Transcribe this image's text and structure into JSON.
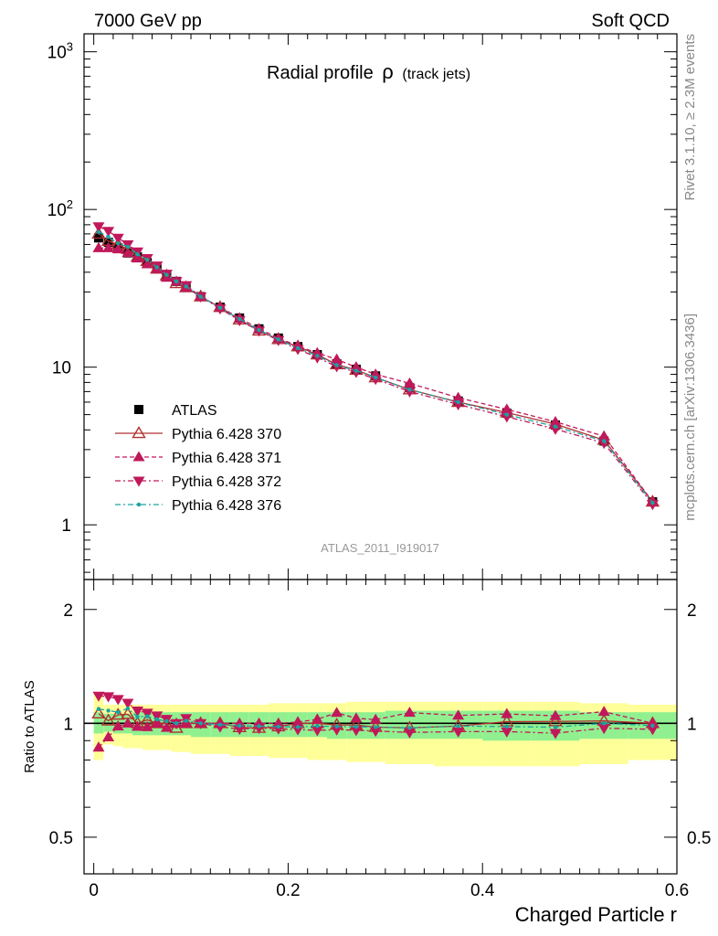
{
  "header": {
    "left": "7000 GeV pp",
    "right": "Soft QCD"
  },
  "side_labels": {
    "rivet": "Rivet 3.1.10, ≥ 2.3M events",
    "mcplots": "mcplots.cern.ch [arXiv:1306.3436]"
  },
  "chart_data": {
    "type": "line",
    "title": "Radial profile",
    "title_symbol": "ρ",
    "title_suffix": "(track jets)",
    "analysis_tag": "ATLAS_2011_I919017",
    "xlabel": "Charged Particle r",
    "ylabel_ratio": "Ratio to ATLAS",
    "xlim": [
      -0.01,
      0.6
    ],
    "ylim_main": [
      0.45,
      1300
    ],
    "yscale_main": "log",
    "ylim_ratio": [
      0.4,
      2.4
    ],
    "yscale_ratio": "log",
    "x_ticks": [
      "0",
      "0.2",
      "0.4",
      "0.6"
    ],
    "y_ticks_main": [
      "1",
      "10",
      "10^2",
      "10^3"
    ],
    "y_ticks_ratio": [
      "0.5",
      "1",
      "2"
    ],
    "legend_position": "middle-left",
    "x": [
      0.005,
      0.015,
      0.025,
      0.035,
      0.045,
      0.055,
      0.065,
      0.075,
      0.085,
      0.095,
      0.11,
      0.13,
      0.15,
      0.17,
      0.19,
      0.21,
      0.23,
      0.25,
      0.27,
      0.29,
      0.325,
      0.375,
      0.425,
      0.475,
      0.525,
      0.575
    ],
    "series": [
      {
        "name": "ATLAS",
        "color": "#000000",
        "marker": "square",
        "dash": "",
        "values": [
          66,
          62,
          57,
          53,
          50,
          46,
          42,
          38,
          35,
          32,
          28,
          24,
          20.5,
          17.5,
          15.3,
          13.5,
          12,
          10.5,
          9.7,
          8.8,
          7.4,
          6.1,
          5.1,
          4.3,
          3.4,
          1.4
        ]
      },
      {
        "name": "Pythia 6.428 370",
        "color": "#b03030",
        "marker": "triangle-open",
        "dash": "",
        "values": [
          70,
          63,
          60,
          56,
          50,
          47,
          42,
          38,
          34,
          32,
          28,
          24,
          20,
          17,
          15,
          13.5,
          12,
          10.4,
          9.6,
          8.6,
          7.2,
          6.0,
          5.15,
          4.35,
          3.45,
          1.4
        ]
      },
      {
        "name": "Pythia 6.428 371",
        "color": "#c0185a",
        "marker": "triangle-up",
        "dash": "5,3",
        "values": [
          57,
          57,
          56,
          53,
          49,
          45,
          42,
          37,
          35,
          32,
          28,
          24,
          20.5,
          17.5,
          15.3,
          13.6,
          12.3,
          11.2,
          10,
          9.0,
          7.9,
          6.4,
          5.4,
          4.5,
          3.65,
          1.4
        ]
      },
      {
        "name": "Pythia 6.428 372",
        "color": "#c0185a",
        "marker": "triangle-down",
        "dash": "6,3,2,3",
        "values": [
          78,
          73,
          66,
          60,
          54,
          49,
          44,
          39,
          35,
          33,
          28,
          23.5,
          19.8,
          17,
          14.8,
          13,
          11.5,
          10.1,
          9.3,
          8.4,
          7.0,
          5.8,
          4.85,
          4.05,
          3.3,
          1.35
        ]
      },
      {
        "name": "Pythia 6.428 376",
        "color": "#1aa3a3",
        "marker": "dot",
        "dash": "6,3,2,3",
        "values": [
          72,
          67,
          61,
          58,
          52,
          48,
          43,
          38.5,
          35,
          32.5,
          28,
          23.8,
          20.2,
          17.2,
          15,
          13.2,
          11.8,
          10.3,
          9.5,
          8.6,
          7.2,
          6.0,
          5.0,
          4.2,
          3.4,
          1.38
        ]
      }
    ],
    "band_edges": [
      0,
      0.01,
      0.02,
      0.03,
      0.04,
      0.05,
      0.06,
      0.07,
      0.08,
      0.09,
      0.1,
      0.12,
      0.14,
      0.16,
      0.18,
      0.2,
      0.22,
      0.24,
      0.26,
      0.28,
      0.3,
      0.35,
      0.4,
      0.45,
      0.5,
      0.55,
      0.6
    ],
    "band_stat": [
      [
        0.94,
        1.07
      ],
      [
        0.95,
        1.06
      ],
      [
        0.94,
        1.06
      ],
      [
        0.94,
        1.06
      ],
      [
        0.93,
        1.07
      ],
      [
        0.93,
        1.07
      ],
      [
        0.93,
        1.07
      ],
      [
        0.93,
        1.07
      ],
      [
        0.93,
        1.07
      ],
      [
        0.93,
        1.07
      ],
      [
        0.92,
        1.07
      ],
      [
        0.92,
        1.07
      ],
      [
        0.92,
        1.07
      ],
      [
        0.92,
        1.07
      ],
      [
        0.92,
        1.07
      ],
      [
        0.92,
        1.07
      ],
      [
        0.92,
        1.07
      ],
      [
        0.91,
        1.07
      ],
      [
        0.91,
        1.07
      ],
      [
        0.91,
        1.07
      ],
      [
        0.91,
        1.08
      ],
      [
        0.91,
        1.08
      ],
      [
        0.9,
        1.08
      ],
      [
        0.9,
        1.08
      ],
      [
        0.91,
        1.07
      ],
      [
        0.91,
        1.07
      ]
    ],
    "band_total": [
      [
        0.8,
        1.2
      ],
      [
        0.88,
        1.12
      ],
      [
        0.87,
        1.12
      ],
      [
        0.86,
        1.12
      ],
      [
        0.86,
        1.12
      ],
      [
        0.85,
        1.12
      ],
      [
        0.85,
        1.12
      ],
      [
        0.85,
        1.12
      ],
      [
        0.84,
        1.12
      ],
      [
        0.84,
        1.12
      ],
      [
        0.83,
        1.12
      ],
      [
        0.83,
        1.12
      ],
      [
        0.82,
        1.12
      ],
      [
        0.82,
        1.12
      ],
      [
        0.81,
        1.13
      ],
      [
        0.81,
        1.13
      ],
      [
        0.8,
        1.13
      ],
      [
        0.8,
        1.13
      ],
      [
        0.79,
        1.14
      ],
      [
        0.79,
        1.14
      ],
      [
        0.78,
        1.14
      ],
      [
        0.77,
        1.14
      ],
      [
        0.77,
        1.14
      ],
      [
        0.77,
        1.14
      ],
      [
        0.78,
        1.13
      ],
      [
        0.8,
        1.12
      ]
    ],
    "band_colors": {
      "stat": "#90f090",
      "total": "#ffff99"
    }
  }
}
